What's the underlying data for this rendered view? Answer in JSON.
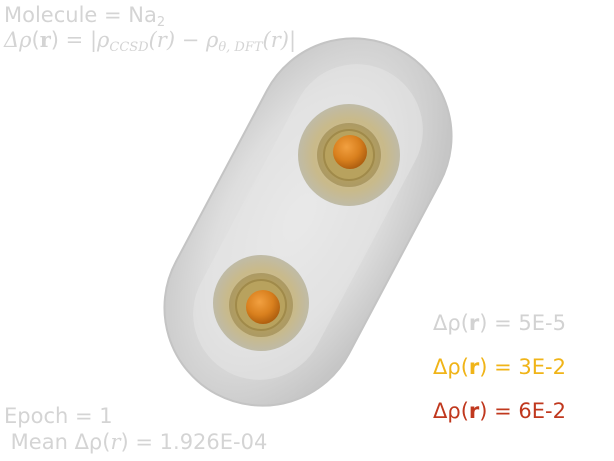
{
  "header": {
    "molecule_label": "Molecule = Na",
    "molecule_subscript": "2",
    "delta_rho_symbol": "Δρ",
    "r_symbol": "r",
    "equation_rest": "= |ρ",
    "ccsd_sub": "CCSD",
    "minus_rho": "(r) − ρ",
    "dft_sub": "θ, DFT",
    "equation_end": "(r)|"
  },
  "legend": {
    "items": [
      {
        "prefix": "Δρ(",
        "bold": "r",
        "suffix": ") = 5E-5",
        "color": "#d2d2d2"
      },
      {
        "prefix": "Δρ(",
        "bold": "r",
        "suffix": ") = 3E-2",
        "color": "#f0b418"
      },
      {
        "prefix": "Δρ(",
        "bold": "r",
        "suffix": ") = 6E-2",
        "color": "#c0381e"
      }
    ]
  },
  "footer": {
    "epoch": "Epoch = 1",
    "mean_prefix": " Mean Δρ(",
    "mean_var": "r",
    "mean_suffix": ") = 1.926E-04"
  },
  "colors": {
    "outer_surface": "#d9d9d9",
    "mid_surface": "#c9a94a",
    "inner_core": "#e08a20"
  }
}
